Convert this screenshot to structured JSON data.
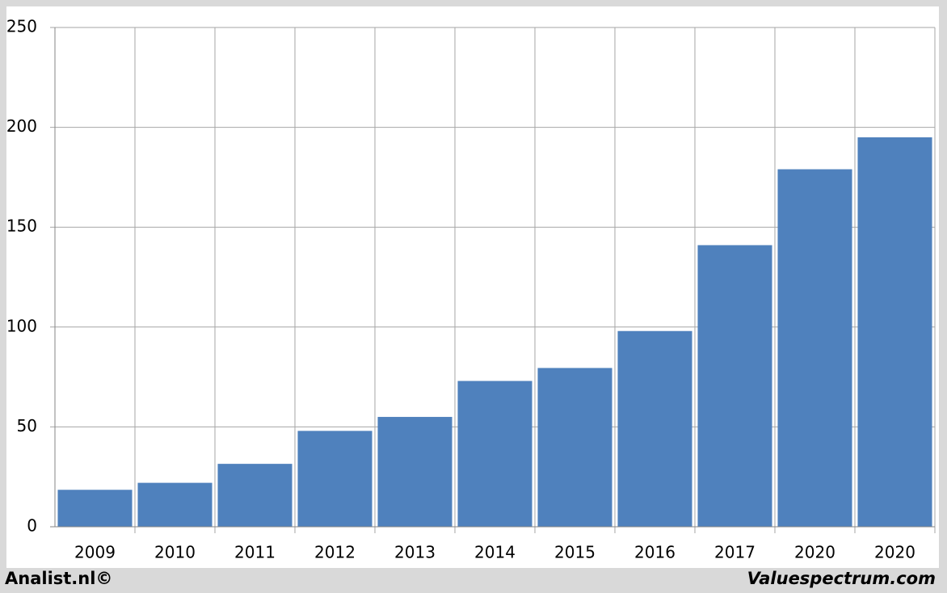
{
  "chart_data": {
    "type": "bar",
    "categories": [
      "2009",
      "2010",
      "2011",
      "2012",
      "2013",
      "2014",
      "2015",
      "2016",
      "2017",
      "2020",
      "2020"
    ],
    "values": [
      18.5,
      22,
      31.5,
      48,
      55,
      73,
      79.5,
      98,
      141,
      179,
      195
    ],
    "color": "#4f81bd",
    "ylim": [
      0,
      250
    ],
    "yticks": [
      0,
      50,
      100,
      150,
      200,
      250
    ],
    "grid": true
  },
  "footer": {
    "left": "Analist.nl©",
    "right": "Valuespectrum.com"
  }
}
